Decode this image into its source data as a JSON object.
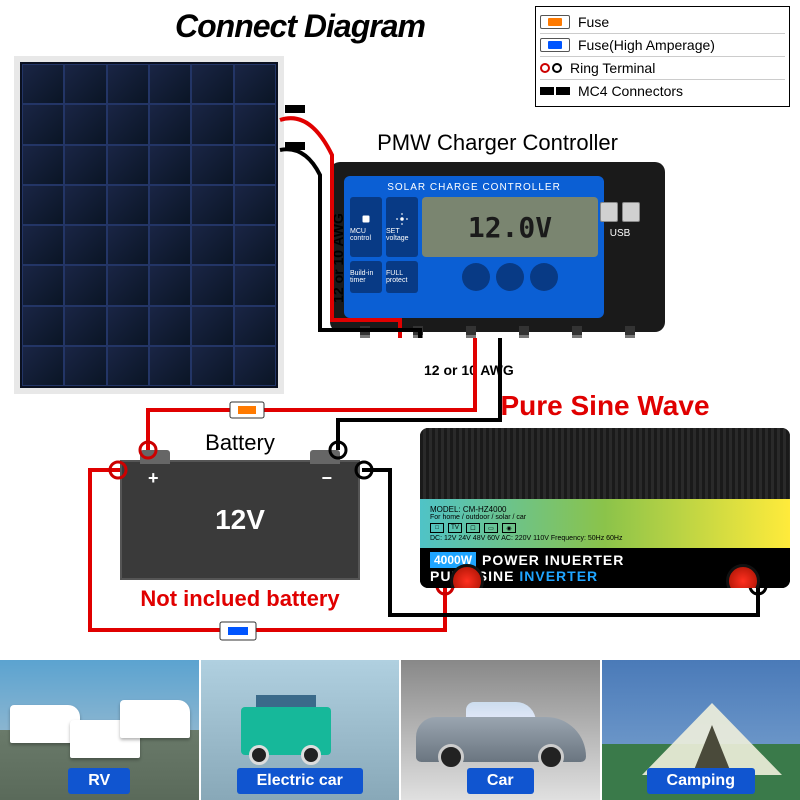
{
  "title": "Connect Diagram",
  "legend": {
    "fuse": "Fuse",
    "fuse_high": "Fuse(High Amperage)",
    "ring": "Ring Terminal",
    "mc4": "MC4 Connectors"
  },
  "controller": {
    "label": "PMW Charger Controller",
    "header": "SOLAR CHARGE CONTROLLER",
    "lcd": "12.0V",
    "usb": "USB",
    "btn1": "MCU control",
    "btn2": "SET voltage",
    "btn3": "Build-in timer",
    "btn4": "FULL protect"
  },
  "wire_awg_1": "12 or 10 AWG",
  "wire_awg_2": "12 or 10 AWG",
  "battery": {
    "label": "Battery",
    "voltage": "12V",
    "note": "Not inclued battery"
  },
  "inverter": {
    "title": "Pure Sine Wave",
    "model": "MODEL: CM-HZ4000",
    "subtitle": "For home / outdoor / solar / car",
    "spec": "DC: 12V 24V 48V 60V  AC: 220V 110V  Frequency: 50Hz 60Hz",
    "watt": "4000W",
    "line1": "POWER INUERTER",
    "line2a": "PURE SINE ",
    "line2b": "INVERTER"
  },
  "gallery": {
    "rv": "RV",
    "ec": "Electric car",
    "car": "Car",
    "camp": "Camping"
  },
  "colors": {
    "accent_red": "#e00000",
    "wire_red": "#e00000",
    "wire_black": "#000000",
    "controller_blue": "#0b5fd4",
    "fuse_orange": "#ff7a00",
    "fuse_blue": "#0055ff",
    "gallery_label_bg": "#1055d0"
  }
}
